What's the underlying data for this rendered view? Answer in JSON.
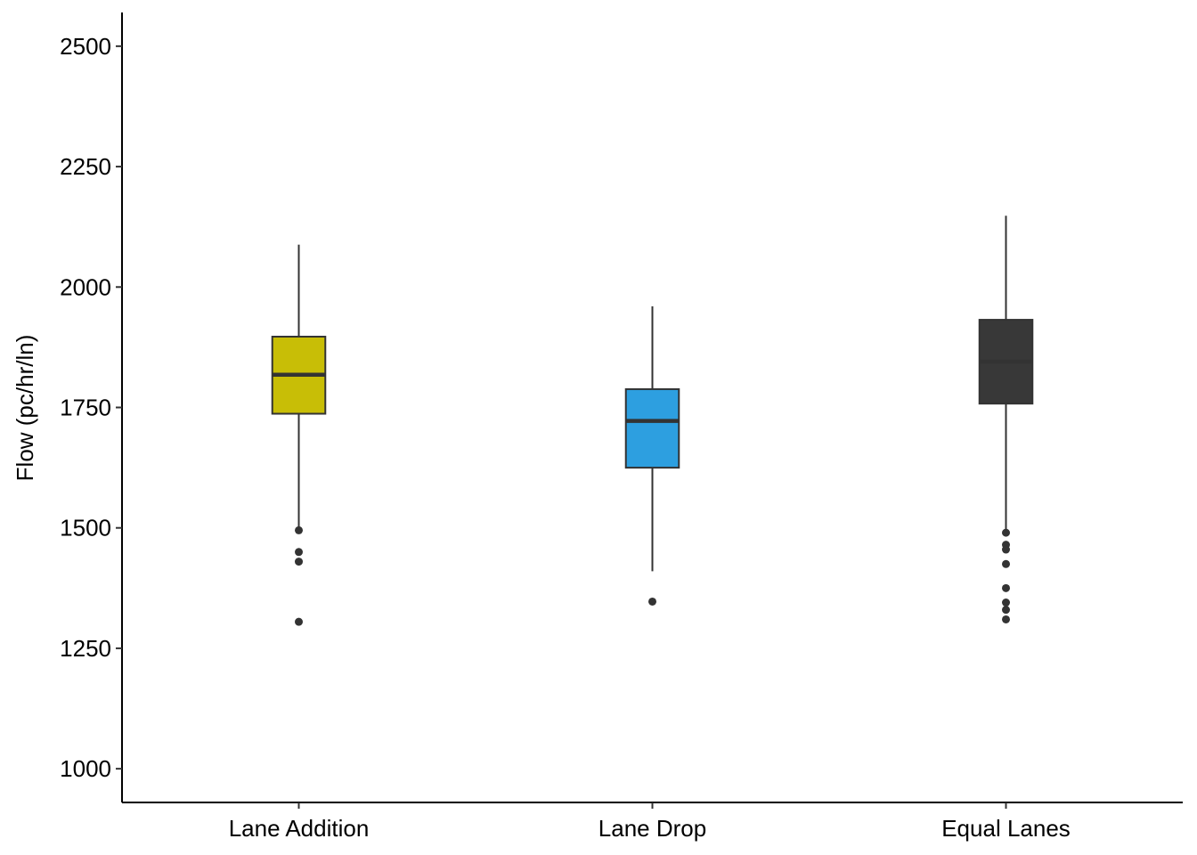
{
  "chart_data": {
    "type": "boxplot",
    "title": "",
    "xlabel": "",
    "ylabel": "Flow (pc/hr/ln)",
    "ylim": [
      930,
      2570
    ],
    "yticks": [
      1000,
      1250,
      1500,
      1750,
      2000,
      2250,
      2500
    ],
    "grid": false,
    "legend": "none",
    "categories": [
      "Lane Addition",
      "Lane Drop",
      "Equal Lanes"
    ],
    "boxes": [
      {
        "category": "Lane Addition",
        "color": "#C8BE06",
        "whisker_low": 1497,
        "q1": 1737,
        "median": 1818,
        "q3": 1897,
        "whisker_high": 2088,
        "outliers": [
          1495,
          1450,
          1430,
          1305
        ]
      },
      {
        "category": "Lane Drop",
        "color": "#2D9FE0",
        "whisker_low": 1410,
        "q1": 1625,
        "median": 1722,
        "q3": 1788,
        "whisker_high": 1960,
        "outliers": [
          1347
        ]
      },
      {
        "category": "Equal Lanes",
        "color": "#383838",
        "whisker_low": 1497,
        "q1": 1758,
        "median": 1845,
        "q3": 1932,
        "whisker_high": 2148,
        "outliers": [
          1490,
          1465,
          1455,
          1425,
          1375,
          1345,
          1330,
          1310
        ]
      }
    ]
  }
}
